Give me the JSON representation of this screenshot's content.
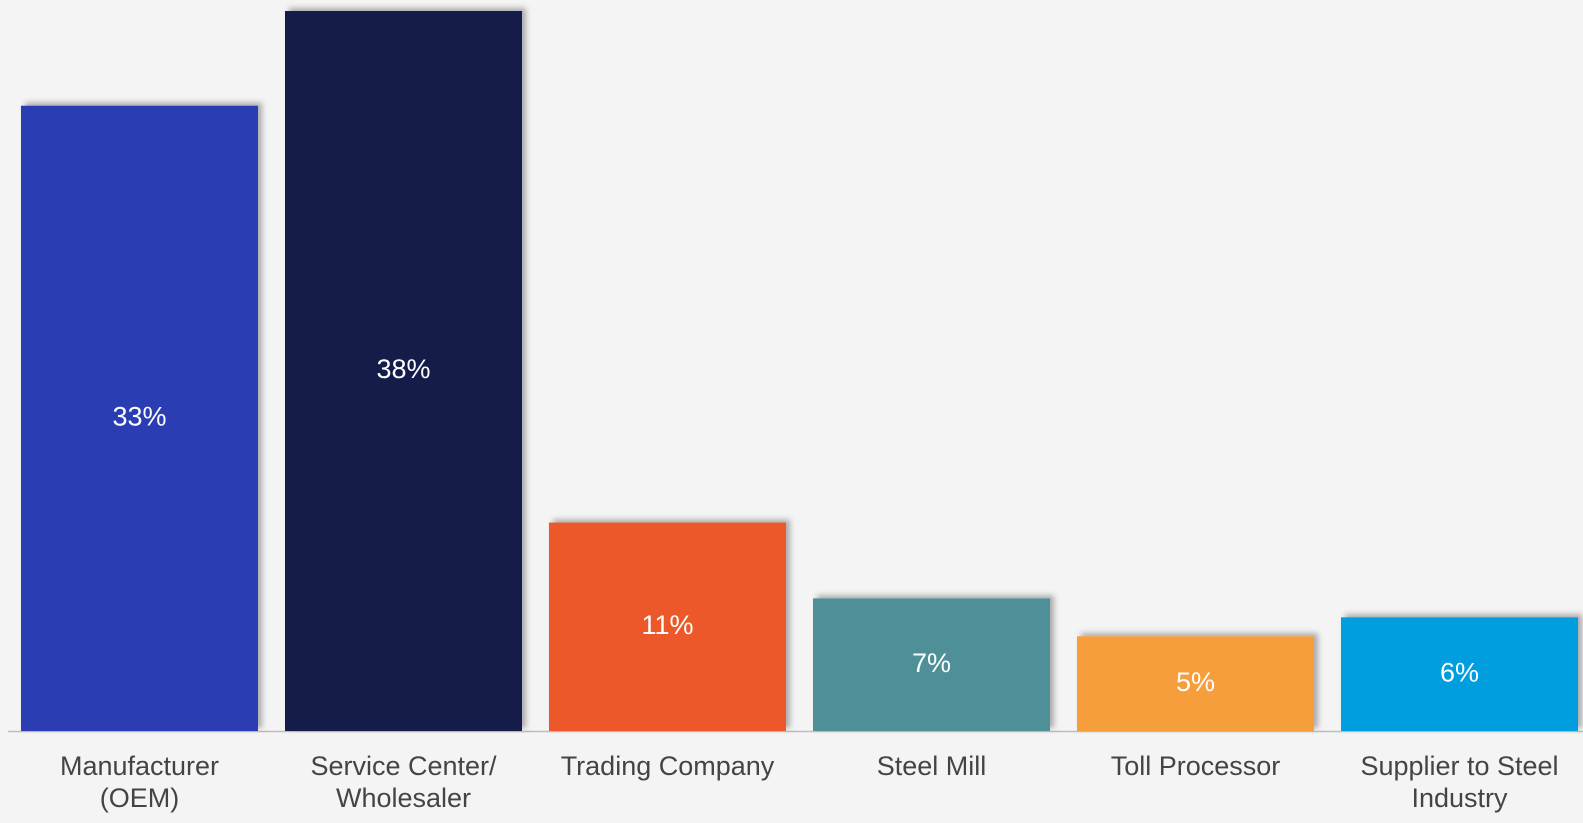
{
  "chart_data": {
    "type": "bar",
    "categories": [
      "Manufacturer (OEM)",
      "Service Center/ Wholesaler",
      "Trading Company",
      "Steel Mill",
      "Toll Processor",
      "Supplier to Steel Industry"
    ],
    "values": [
      33,
      38,
      11,
      7,
      5,
      6
    ],
    "value_labels": [
      "33%",
      "38%",
      "11%",
      "7%",
      "5%",
      "6%"
    ],
    "colors": [
      "#2b3db3",
      "#161c4a",
      "#ec5829",
      "#509098",
      "#f69e3a",
      "#009ddf"
    ]
  }
}
